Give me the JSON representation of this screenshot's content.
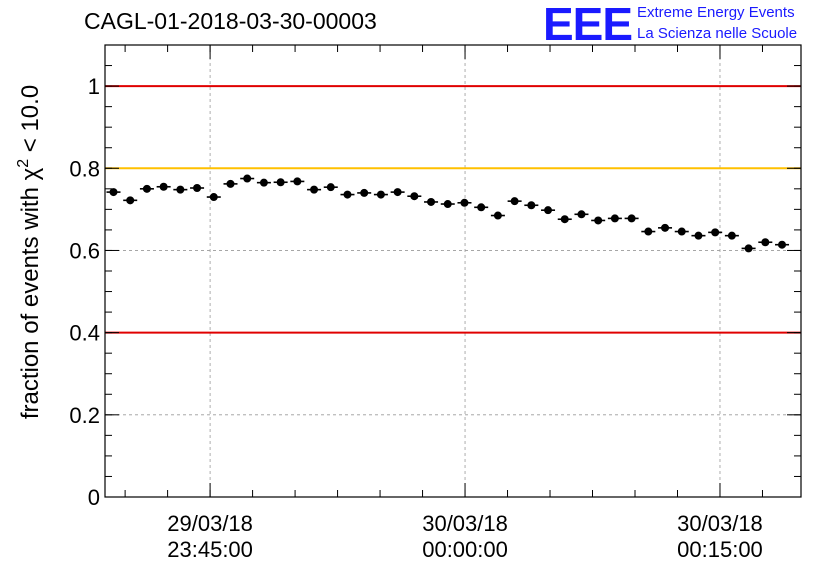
{
  "title": "CAGL-01-2018-03-30-00003",
  "logo": {
    "mark": "EEE",
    "line1": "Extreme Energy Events",
    "line2": "La Scienza nelle Scuole"
  },
  "colors": {
    "limit_line": "#e00000",
    "reference_line": "#ffc000",
    "points": "#000000",
    "grid": "#9a9a9a",
    "logo": "#1a1aff"
  },
  "chart_data": {
    "type": "scatter",
    "title": "CAGL-01-2018-03-30-00003",
    "ylabel": "fraction of events with χ² < 10.0",
    "ylabel_parts": {
      "text": "fraction of events with χ",
      "sup": "2",
      "tail": " < 10.0"
    },
    "xlabel": "",
    "ylim": [
      0,
      1.1
    ],
    "xlim": [
      "2018-03-29 23:38:49",
      "2018-03-30 00:19:46"
    ],
    "yticks": [
      "0",
      "0.2",
      "0.4",
      "0.6",
      "0.8",
      "1"
    ],
    "yticks_values": [
      0,
      0.2,
      0.4,
      0.6,
      0.8,
      1.0
    ],
    "xticks": [
      {
        "time": "2018-03-29 23:45:00",
        "date": "29/03/18",
        "clock": "23:45:00"
      },
      {
        "time": "2018-03-30 00:00:00",
        "date": "30/03/18",
        "clock": "00:00:00"
      },
      {
        "time": "2018-03-30 00:15:00",
        "date": "30/03/18",
        "clock": "00:15:00"
      }
    ],
    "grid": true,
    "hlines": [
      {
        "y": 1.0,
        "color": "#e00000"
      },
      {
        "y": 0.8,
        "color": "#ffc000"
      },
      {
        "y": 0.4,
        "color": "#e00000"
      }
    ],
    "series": [
      {
        "x": [
          "2018-03-29 23:39:19",
          "2018-03-29 23:40:18",
          "2018-03-29 23:41:17",
          "2018-03-29 23:42:16",
          "2018-03-29 23:43:15",
          "2018-03-29 23:44:14",
          "2018-03-29 23:45:13",
          "2018-03-29 23:46:12",
          "2018-03-29 23:47:11",
          "2018-03-29 23:48:10",
          "2018-03-29 23:49:09",
          "2018-03-29 23:50:08",
          "2018-03-29 23:51:07",
          "2018-03-29 23:52:06",
          "2018-03-29 23:53:05",
          "2018-03-29 23:54:04",
          "2018-03-29 23:55:03",
          "2018-03-29 23:56:02",
          "2018-03-29 23:57:01",
          "2018-03-29 23:58:00",
          "2018-03-29 23:58:59",
          "2018-03-29 23:59:58",
          "2018-03-30 00:00:57",
          "2018-03-30 00:01:56",
          "2018-03-30 00:02:55",
          "2018-03-30 00:03:54",
          "2018-03-30 00:04:53",
          "2018-03-30 00:05:52",
          "2018-03-30 00:06:51",
          "2018-03-30 00:07:50",
          "2018-03-30 00:08:49",
          "2018-03-30 00:09:48",
          "2018-03-30 00:10:47",
          "2018-03-30 00:11:46",
          "2018-03-30 00:12:45",
          "2018-03-30 00:13:44",
          "2018-03-30 00:14:43",
          "2018-03-30 00:15:42",
          "2018-03-30 00:16:41",
          "2018-03-30 00:17:40",
          "2018-03-30 00:18:39"
        ],
        "values": [
          0.742,
          0.722,
          0.75,
          0.755,
          0.748,
          0.752,
          0.73,
          0.762,
          0.775,
          0.765,
          0.766,
          0.768,
          0.748,
          0.754,
          0.736,
          0.74,
          0.736,
          0.742,
          0.732,
          0.718,
          0.713,
          0.716,
          0.705,
          0.685,
          0.72,
          0.71,
          0.698,
          0.676,
          0.688,
          0.673,
          0.678,
          0.678,
          0.646,
          0.655,
          0.646,
          0.636,
          0.644,
          0.636,
          0.605,
          0.62,
          0.614
        ],
        "y_error": 0.008
      }
    ]
  }
}
